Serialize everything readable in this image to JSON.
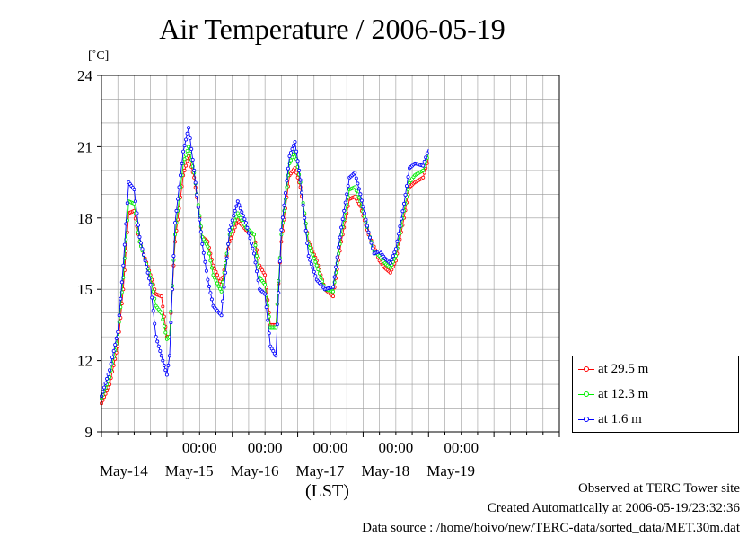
{
  "title": "Air Temperature / 2006-05-19",
  "unit_label": "[˚C]",
  "lst_label": "(LST)",
  "footer": {
    "line1": "Observed at TERC Tower site",
    "line2": "Created Automatically at 2006-05-19/23:32:36",
    "line3": "Data source : /home/hoivo/new/TERC-data/sorted_data/MET.30m.dat"
  },
  "colors": {
    "s29": "#ff0000",
    "s12": "#00ee00",
    "s1": "#0000ff",
    "grid": "#999999",
    "axis": "#000000"
  },
  "chart_data": {
    "type": "line",
    "title": "Air Temperature / 2006-05-19",
    "ylabel": "[˚C]",
    "xlabel": "(LST)",
    "ylim": [
      9,
      24
    ],
    "xlim_days": [
      "2006-05-13T00:00",
      "2006-05-19T24:00"
    ],
    "y_ticks": [
      9,
      12,
      15,
      18,
      21,
      24
    ],
    "x_tick_labels": [
      "00:00",
      "00:00",
      "00:00",
      "00:00",
      "00:00"
    ],
    "x_day_labels": [
      "May-14",
      "May-15",
      "May-16",
      "May-17",
      "May-18",
      "May-19"
    ],
    "grid": true,
    "legend_position": "bottom-right",
    "series": [
      {
        "name": "at 29.5 m",
        "color": "#ff0000",
        "points": [
          [
            "05-13 00:00",
            10.2
          ],
          [
            "05-13 03:00",
            11.0
          ],
          [
            "05-13 06:00",
            12.6
          ],
          [
            "05-13 08:00",
            15.0
          ],
          [
            "05-13 10:00",
            18.2
          ],
          [
            "05-13 12:00",
            18.3
          ],
          [
            "05-13 14:00",
            17.0
          ],
          [
            "05-13 18:00",
            15.6
          ],
          [
            "05-13 20:00",
            14.8
          ],
          [
            "05-13 22:00",
            14.7
          ],
          [
            "05-14 00:00",
            13.0
          ],
          [
            "05-14 01:00",
            13.0
          ],
          [
            "05-14 03:00",
            17.0
          ],
          [
            "05-14 06:00",
            19.8
          ],
          [
            "05-14 08:00",
            20.6
          ],
          [
            "05-14 10:00",
            19.7
          ],
          [
            "05-14 13:00",
            17.2
          ],
          [
            "05-14 15:00",
            17.0
          ],
          [
            "05-14 17:00",
            16.0
          ],
          [
            "05-14 20:00",
            15.2
          ],
          [
            "05-14 23:00",
            17.0
          ],
          [
            "05-15 02:00",
            17.9
          ],
          [
            "05-15 05:00",
            17.5
          ],
          [
            "05-15 08:00",
            17.3
          ],
          [
            "05-15 10:00",
            16.0
          ],
          [
            "05-15 12:00",
            15.6
          ],
          [
            "05-15 14:00",
            13.5
          ],
          [
            "05-15 16:00",
            13.5
          ],
          [
            "05-15 18:00",
            17.0
          ],
          [
            "05-15 21:00",
            19.8
          ],
          [
            "05-15 23:00",
            20.1
          ],
          [
            "05-16 01:00",
            19.3
          ],
          [
            "05-16 04:00",
            17.0
          ],
          [
            "05-16 07:00",
            16.2
          ],
          [
            "05-16 10:00",
            15.0
          ],
          [
            "05-16 13:00",
            14.7
          ],
          [
            "05-16 16:00",
            17.0
          ],
          [
            "05-16 19:00",
            18.8
          ],
          [
            "05-16 21:00",
            18.9
          ],
          [
            "05-16 23:00",
            18.5
          ],
          [
            "05-17 02:00",
            17.3
          ],
          [
            "05-17 04:00",
            16.8
          ],
          [
            "05-17 06:00",
            16.2
          ],
          [
            "05-17 08:00",
            15.9
          ],
          [
            "05-17 10:00",
            15.7
          ],
          [
            "05-17 12:00",
            16.2
          ],
          [
            "05-17 15:00",
            18.0
          ],
          [
            "05-17 17:00",
            19.3
          ],
          [
            "05-17 19:00",
            19.5
          ],
          [
            "05-17 22:00",
            19.7
          ],
          [
            "05-17 23:59",
            20.5
          ]
        ]
      },
      {
        "name": "at 12.3 m",
        "color": "#00ee00",
        "points": [
          [
            "05-13 00:00",
            10.4
          ],
          [
            "05-13 03:00",
            11.3
          ],
          [
            "05-13 06:00",
            13.0
          ],
          [
            "05-13 08:00",
            15.5
          ],
          [
            "05-13 10:00",
            18.7
          ],
          [
            "05-13 12:00",
            18.6
          ],
          [
            "05-13 14:00",
            17.0
          ],
          [
            "05-13 18:00",
            15.5
          ],
          [
            "05-13 20:00",
            14.3
          ],
          [
            "05-13 22:00",
            14.0
          ],
          [
            "05-14 00:00",
            12.9
          ],
          [
            "05-14 01:00",
            13.0
          ],
          [
            "05-14 03:00",
            17.3
          ],
          [
            "05-14 06:00",
            20.3
          ],
          [
            "05-14 08:00",
            21.0
          ],
          [
            "05-14 10:00",
            19.9
          ],
          [
            "05-14 13:00",
            17.2
          ],
          [
            "05-14 15:00",
            16.8
          ],
          [
            "05-14 17:00",
            15.6
          ],
          [
            "05-14 20:00",
            14.9
          ],
          [
            "05-14 23:00",
            17.3
          ],
          [
            "05-15 02:00",
            18.2
          ],
          [
            "05-15 05:00",
            17.6
          ],
          [
            "05-15 08:00",
            17.3
          ],
          [
            "05-15 10:00",
            15.5
          ],
          [
            "05-15 12:00",
            15.2
          ],
          [
            "05-15 14:00",
            13.4
          ],
          [
            "05-15 16:00",
            13.4
          ],
          [
            "05-15 18:00",
            17.3
          ],
          [
            "05-15 21:00",
            20.3
          ],
          [
            "05-15 23:00",
            20.8
          ],
          [
            "05-16 01:00",
            19.5
          ],
          [
            "05-16 04:00",
            16.9
          ],
          [
            "05-16 07:00",
            16.0
          ],
          [
            "05-16 10:00",
            15.0
          ],
          [
            "05-16 13:00",
            14.9
          ],
          [
            "05-16 16:00",
            17.3
          ],
          [
            "05-16 19:00",
            19.2
          ],
          [
            "05-16 21:00",
            19.3
          ],
          [
            "05-16 23:00",
            18.7
          ],
          [
            "05-17 02:00",
            17.4
          ],
          [
            "05-17 04:00",
            16.6
          ],
          [
            "05-17 06:00",
            16.4
          ],
          [
            "05-17 08:00",
            16.1
          ],
          [
            "05-17 10:00",
            15.9
          ],
          [
            "05-17 12:00",
            16.4
          ],
          [
            "05-17 15:00",
            18.3
          ],
          [
            "05-17 17:00",
            19.5
          ],
          [
            "05-17 19:00",
            19.8
          ],
          [
            "05-17 22:00",
            20.0
          ],
          [
            "05-17 23:59",
            20.7
          ]
        ]
      },
      {
        "name": "at 1.6 m",
        "color": "#0000ff",
        "points": [
          [
            "05-13 00:00",
            10.5
          ],
          [
            "05-13 03:00",
            11.6
          ],
          [
            "05-13 06:00",
            13.2
          ],
          [
            "05-13 08:00",
            16.0
          ],
          [
            "05-13 10:00",
            19.5
          ],
          [
            "05-13 12:00",
            19.2
          ],
          [
            "05-13 14:00",
            17.2
          ],
          [
            "05-13 18:00",
            15.2
          ],
          [
            "05-13 20:00",
            13.0
          ],
          [
            "05-13 22:00",
            12.2
          ],
          [
            "05-14 00:00",
            11.4
          ],
          [
            "05-14 01:00",
            12.2
          ],
          [
            "05-14 03:00",
            17.8
          ],
          [
            "05-14 06:00",
            20.8
          ],
          [
            "05-14 08:00",
            21.8
          ],
          [
            "05-14 10:00",
            20.0
          ],
          [
            "05-14 13:00",
            16.9
          ],
          [
            "05-14 15:00",
            15.4
          ],
          [
            "05-14 17:00",
            14.3
          ],
          [
            "05-14 20:00",
            13.9
          ],
          [
            "05-14 23:00",
            17.5
          ],
          [
            "05-15 02:00",
            18.7
          ],
          [
            "05-15 05:00",
            17.8
          ],
          [
            "05-15 08:00",
            16.5
          ],
          [
            "05-15 10:00",
            15.0
          ],
          [
            "05-15 12:00",
            14.8
          ],
          [
            "05-15 14:00",
            12.6
          ],
          [
            "05-15 16:00",
            12.2
          ],
          [
            "05-15 18:00",
            17.5
          ],
          [
            "05-15 21:00",
            20.6
          ],
          [
            "05-15 23:00",
            21.2
          ],
          [
            "05-16 01:00",
            19.6
          ],
          [
            "05-16 04:00",
            16.4
          ],
          [
            "05-16 07:00",
            15.4
          ],
          [
            "05-16 10:00",
            15.0
          ],
          [
            "05-16 13:00",
            15.1
          ],
          [
            "05-16 16:00",
            17.6
          ],
          [
            "05-16 19:00",
            19.7
          ],
          [
            "05-16 21:00",
            19.9
          ],
          [
            "05-16 23:00",
            19.0
          ],
          [
            "05-17 02:00",
            17.4
          ],
          [
            "05-17 04:00",
            16.5
          ],
          [
            "05-17 06:00",
            16.6
          ],
          [
            "05-17 08:00",
            16.3
          ],
          [
            "05-17 10:00",
            16.1
          ],
          [
            "05-17 12:00",
            16.7
          ],
          [
            "05-17 15:00",
            18.6
          ],
          [
            "05-17 17:00",
            20.1
          ],
          [
            "05-17 19:00",
            20.3
          ],
          [
            "05-17 22:00",
            20.2
          ],
          [
            "05-17 23:59",
            20.9
          ]
        ]
      }
    ]
  }
}
